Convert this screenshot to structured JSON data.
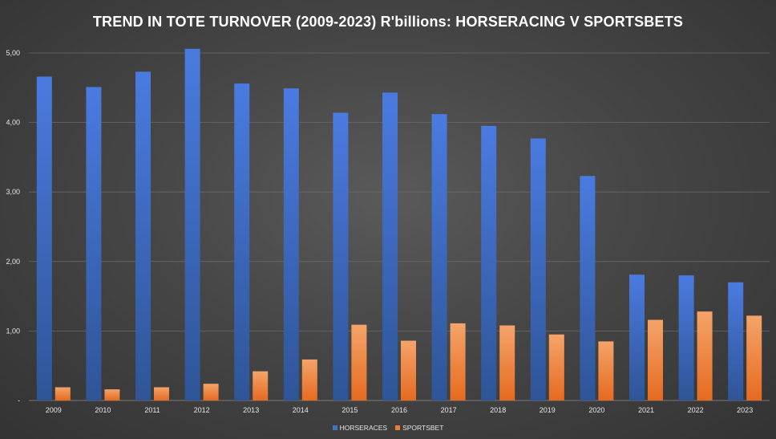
{
  "chart_data": {
    "type": "bar",
    "title": "TREND IN TOTE TURNOVER (2009-2023) R'billions: HORSERACING V SPORTSBETS",
    "categories": [
      "2009",
      "2010",
      "2011",
      "2012",
      "2013",
      "2014",
      "2015",
      "2016",
      "2017",
      "2018",
      "2019",
      "2020",
      "2021",
      "2022",
      "2023"
    ],
    "series": [
      {
        "name": "HORSERACES",
        "color": "#4472c4",
        "values": [
          4.66,
          4.51,
          4.73,
          5.06,
          4.56,
          4.49,
          4.14,
          4.43,
          4.12,
          3.95,
          3.77,
          3.23,
          1.81,
          1.8,
          1.7
        ]
      },
      {
        "name": "SPORTSBET",
        "color": "#ed7d31",
        "values": [
          0.19,
          0.16,
          0.19,
          0.24,
          0.42,
          0.59,
          1.09,
          0.86,
          1.11,
          1.08,
          0.95,
          0.85,
          1.16,
          1.28,
          1.22
        ]
      }
    ],
    "ylim": [
      0,
      5
    ],
    "yticks": [
      0,
      1,
      2,
      3,
      4,
      5
    ],
    "ytick_labels": [
      "-",
      "1,00",
      "2,00",
      "3,00",
      "4,00",
      "5,00"
    ],
    "xlabel": "",
    "ylabel": "",
    "grid": true,
    "legend_position": "bottom"
  }
}
